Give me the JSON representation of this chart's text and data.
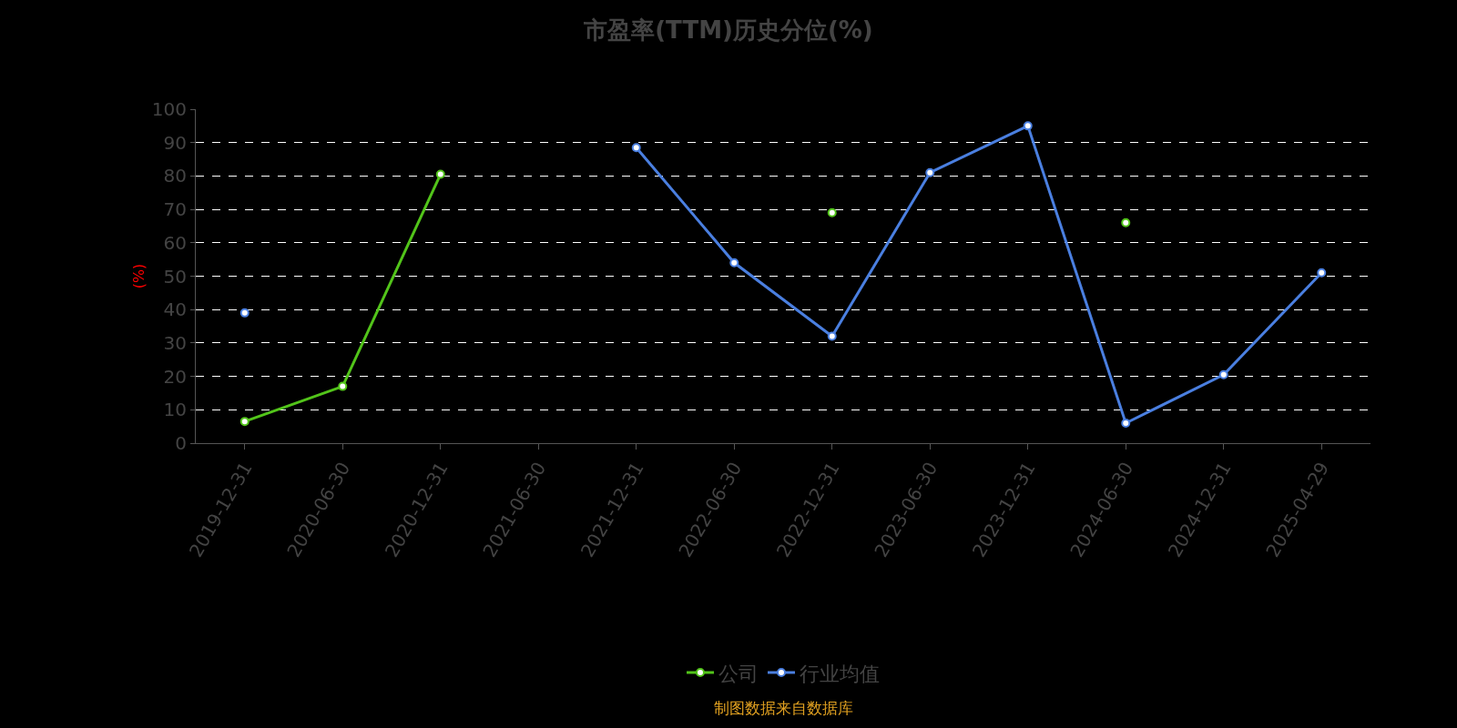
{
  "chart_data": {
    "type": "line",
    "title": "市盈率(TTM)历史分位(%)",
    "ylabel": "(%)",
    "categories": [
      "2019-12-31",
      "2020-06-30",
      "2020-12-31",
      "2021-06-30",
      "2021-12-31",
      "2022-06-30",
      "2022-12-31",
      "2023-06-30",
      "2023-12-31",
      "2024-06-30",
      "2024-12-31",
      "2025-04-29"
    ],
    "series": [
      {
        "name": "公司",
        "color": "#52c41a",
        "values": [
          6.5,
          17,
          80.5,
          null,
          null,
          null,
          69,
          null,
          null,
          66,
          null,
          null
        ]
      },
      {
        "name": "行业均值",
        "color": "#4a7fe0",
        "values": [
          39,
          null,
          null,
          null,
          88.5,
          54,
          32,
          81,
          95,
          6,
          20.5,
          51
        ]
      }
    ],
    "ylim": [
      0,
      100
    ],
    "yticks": [
      0,
      10,
      20,
      30,
      40,
      50,
      60,
      70,
      80,
      90,
      100
    ],
    "grid": "y",
    "legend": "bottom",
    "marker": "circle",
    "line_style": "solid",
    "annotations": [
      "制图数据来自数据库"
    ]
  }
}
